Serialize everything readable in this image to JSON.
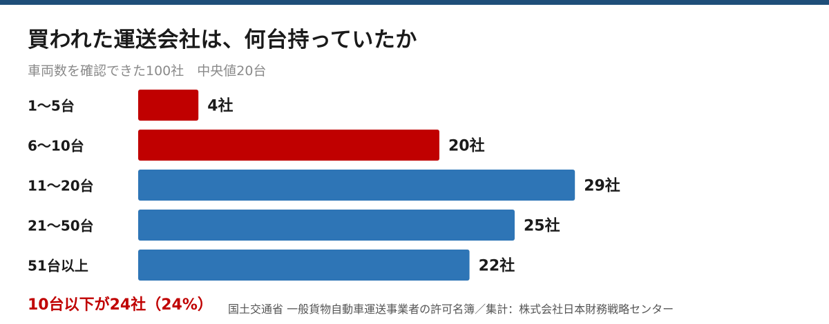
{
  "header": {
    "title": "買われた運送会社は、何台持っていたか",
    "subtitle": "車両数を確認できた100社　中央値20台"
  },
  "chart_data": {
    "type": "bar",
    "orientation": "horizontal",
    "categories": [
      "1〜5台",
      "6〜10台",
      "11〜20台",
      "21〜50台",
      "51台以上"
    ],
    "values": [
      4,
      20,
      29,
      25,
      22
    ],
    "value_labels": [
      "4社",
      "20社",
      "29社",
      "25社",
      "22社"
    ],
    "colors": [
      "#c00000",
      "#c00000",
      "#2e75b6",
      "#2e75b6",
      "#2e75b6"
    ],
    "xlim": [
      0,
      33
    ],
    "grid": false
  },
  "footer": {
    "summary": "10台以下が24社（24%）",
    "source": "国土交通省 一般貨物自動車運送事業者の許可名簿／集計：株式会社日本財務戦略センター"
  }
}
